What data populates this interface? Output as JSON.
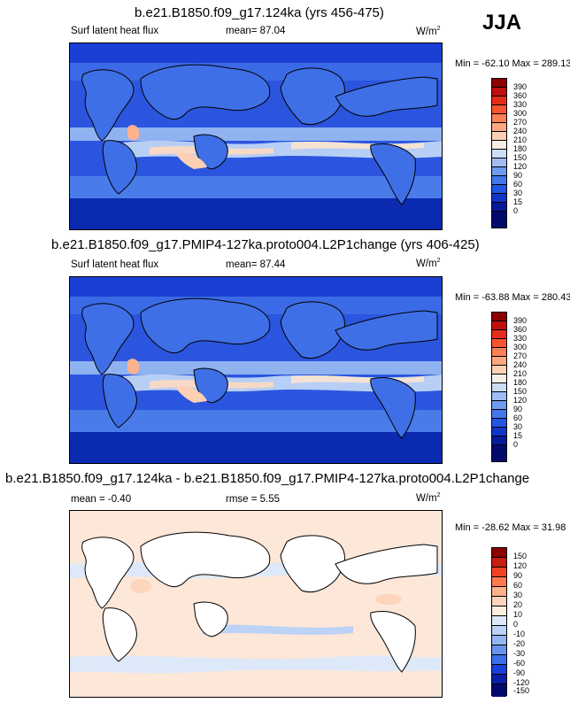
{
  "season": "JJA",
  "panels": [
    {
      "title": "b.e21.B1850.f09_g17.124ka (yrs 456-475)",
      "left_label": "Surf latent heat flux",
      "mid_label": "mean=  87.04",
      "units": "W/m",
      "units_sup": "2",
      "minmax": "Min = -62.10 Max = 289.13",
      "colorbar_labels": [
        "390",
        "360",
        "330",
        "300",
        "270",
        "240",
        "210",
        "180",
        "150",
        "120",
        "90",
        "60",
        "30",
        "15",
        "0"
      ]
    },
    {
      "title": "b.e21.B1850.f09_g17.PMIP4-127ka.proto004.L2P1change (yrs 406-425)",
      "left_label": "Surf latent heat flux",
      "mid_label": "mean=  87.44",
      "units": "W/m",
      "units_sup": "2",
      "minmax": "Min = -63.88 Max = 280.43",
      "colorbar_labels": [
        "390",
        "360",
        "330",
        "300",
        "270",
        "240",
        "210",
        "180",
        "150",
        "120",
        "90",
        "60",
        "30",
        "15",
        "0"
      ]
    },
    {
      "title": "b.e21.B1850.f09_g17.124ka - b.e21.B1850.f09_g17.PMIP4-127ka.proto004.L2P1change",
      "left_label": "mean =  -0.40",
      "mid_label": "rmse =   5.55",
      "units": "W/m",
      "units_sup": "2",
      "minmax": "Min = -28.62 Max = 31.98",
      "colorbar_labels": [
        "150",
        "120",
        "90",
        "60",
        "30",
        "20",
        "10",
        "0",
        "-10",
        "-20",
        "-30",
        "-60",
        "-90",
        "-120",
        "-150"
      ]
    }
  ],
  "colors": {
    "abs_scale": [
      "#8b0000",
      "#bf0f0f",
      "#e32d1b",
      "#f7552f",
      "#fc8156",
      "#fda882",
      "#fdd0b4",
      "#f4eee6",
      "#cddcf5",
      "#9fbdf3",
      "#6e9bee",
      "#4377ec",
      "#2156e4",
      "#1036c8",
      "#061a9a",
      "#020a6e"
    ],
    "diff_scale": [
      "#8b0000",
      "#c81e12",
      "#ee4423",
      "#fc7b4f",
      "#fdb08c",
      "#fdd5bd",
      "#fdeee0",
      "#dde9f9",
      "#bcd2f6",
      "#93b5f2",
      "#6793ec",
      "#3b6ee8",
      "#1940d8",
      "#0a1ea6",
      "#020a6e"
    ],
    "land_abs": "#3f6fe6",
    "ocean_abs": "#2b55de",
    "land_diff": "#ffffff",
    "ocean_diff": "#fde7d8"
  }
}
